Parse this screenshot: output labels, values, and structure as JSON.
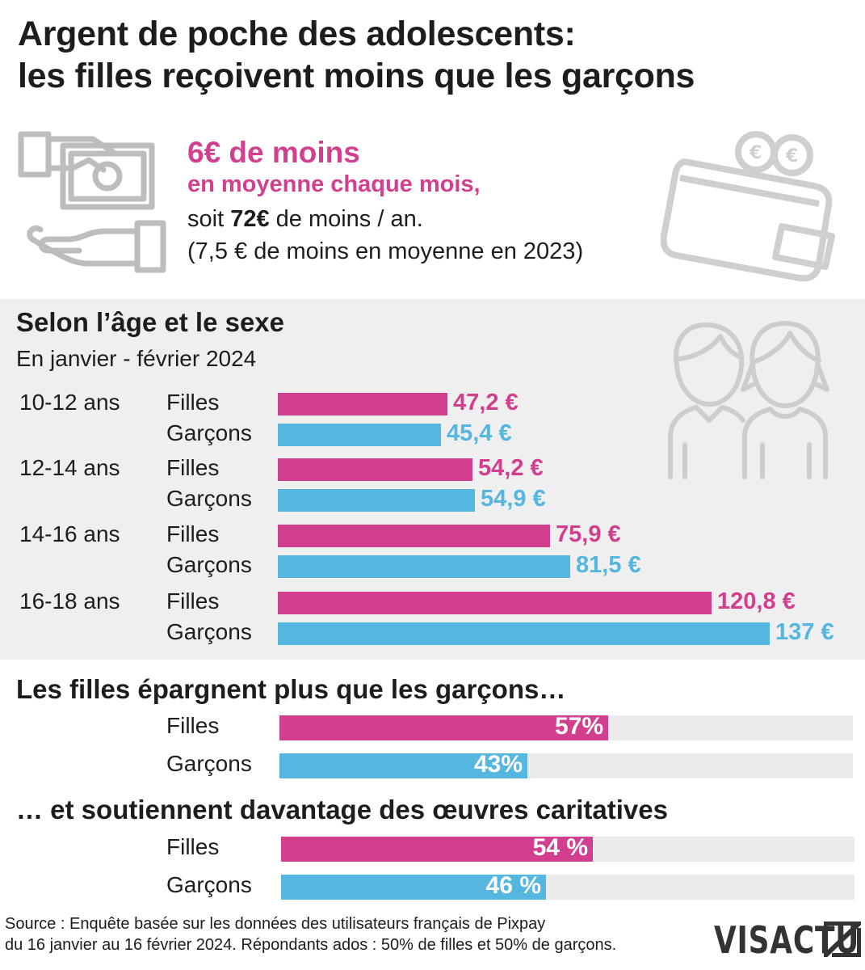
{
  "title": {
    "line1": "Argent de poche des adolescents:",
    "line2": "les filles reçoivent moins que les garçons"
  },
  "headline": {
    "amount": "6€ de moins",
    "period": "en moyenne chaque mois,",
    "yearly_prefix": "soit ",
    "yearly_amount": "72€",
    "yearly_suffix": " de moins / an.",
    "note_2023": "(7,5 € de moins en moyenne en 2023)"
  },
  "colors": {
    "filles": "#d33f8f",
    "garcons": "#55b6df",
    "panel": "#efefef",
    "track": "#ebebeb",
    "icon": "#bdbdbd"
  },
  "icons": [
    "hand-banknote-icon",
    "wallet-coins-icon",
    "boy-girl-icon"
  ],
  "chart_data": [
    {
      "type": "bar",
      "orientation": "horizontal",
      "title": "Selon l’âge et le sexe",
      "subtitle": "En janvier - février 2024",
      "groups": [
        {
          "label": "10-12 ans",
          "bars": [
            {
              "name": "Filles",
              "value": 47.2,
              "label": "47,2 €"
            },
            {
              "name": "Garçons",
              "value": 45.4,
              "label": "45,4 €"
            }
          ]
        },
        {
          "label": "12-14 ans",
          "bars": [
            {
              "name": "Filles",
              "value": 54.2,
              "label": "54,2 €"
            },
            {
              "name": "Garçons",
              "value": 54.9,
              "label": "54,9 €"
            }
          ]
        },
        {
          "label": "14-16 ans",
          "bars": [
            {
              "name": "Filles",
              "value": 75.9,
              "label": "75,9 €"
            },
            {
              "name": "Garçons",
              "value": 81.5,
              "label": "81,5 €"
            }
          ]
        },
        {
          "label": "16-18 ans",
          "bars": [
            {
              "name": "Filles",
              "value": 120.8,
              "label": "120,8 €"
            },
            {
              "name": "Garçons",
              "value": 137,
              "label": "137 €"
            }
          ]
        }
      ],
      "xlim": [
        0,
        137
      ]
    },
    {
      "type": "bar",
      "orientation": "horizontal",
      "title": "Les filles épargnent plus que les garçons…",
      "bars": [
        {
          "name": "Filles",
          "value": 57,
          "label": "57%"
        },
        {
          "name": "Garçons",
          "value": 43,
          "label": "43%"
        }
      ],
      "xlim": [
        0,
        100
      ]
    },
    {
      "type": "bar",
      "orientation": "horizontal",
      "title": "… et soutiennent davantage des œuvres caritatives",
      "bars": [
        {
          "name": "Filles",
          "value": 54,
          "label": "54 %"
        },
        {
          "name": "Garçons",
          "value": 46,
          "label": "46 %"
        }
      ],
      "xlim": [
        0,
        100
      ]
    }
  ],
  "footer": {
    "source_line1": "Source : Enquête basée sur les données des utilisateurs français de Pixpay",
    "source_line2": "du 16 janvier au 16 février 2024. Répondants ados : 50% de filles et 50% de garçons.",
    "logo": "VISACTU"
  }
}
